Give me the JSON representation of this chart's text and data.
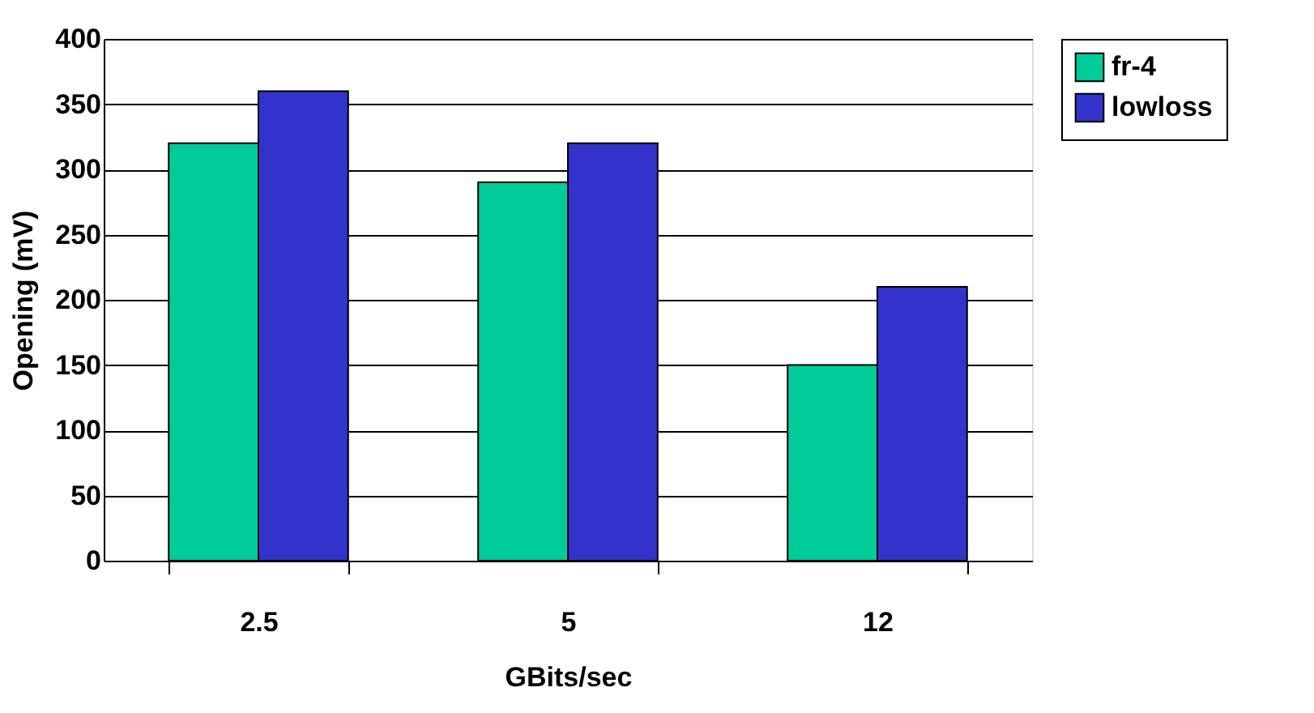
{
  "chart_data": {
    "type": "bar",
    "xlabel": "GBits/sec",
    "ylabel": "Opening (mV)",
    "categories": [
      "2.5",
      "5",
      "12"
    ],
    "series": [
      {
        "name": "fr-4",
        "color": "#00cc99",
        "values": [
          320,
          290,
          150
        ]
      },
      {
        "name": "lowloss",
        "color": "#3333cc",
        "values": [
          360,
          320,
          210
        ]
      }
    ],
    "ylim": [
      0,
      400
    ],
    "yticks": [
      0,
      50,
      100,
      150,
      200,
      250,
      300,
      350,
      400
    ],
    "grid": "y",
    "legend": "right"
  }
}
